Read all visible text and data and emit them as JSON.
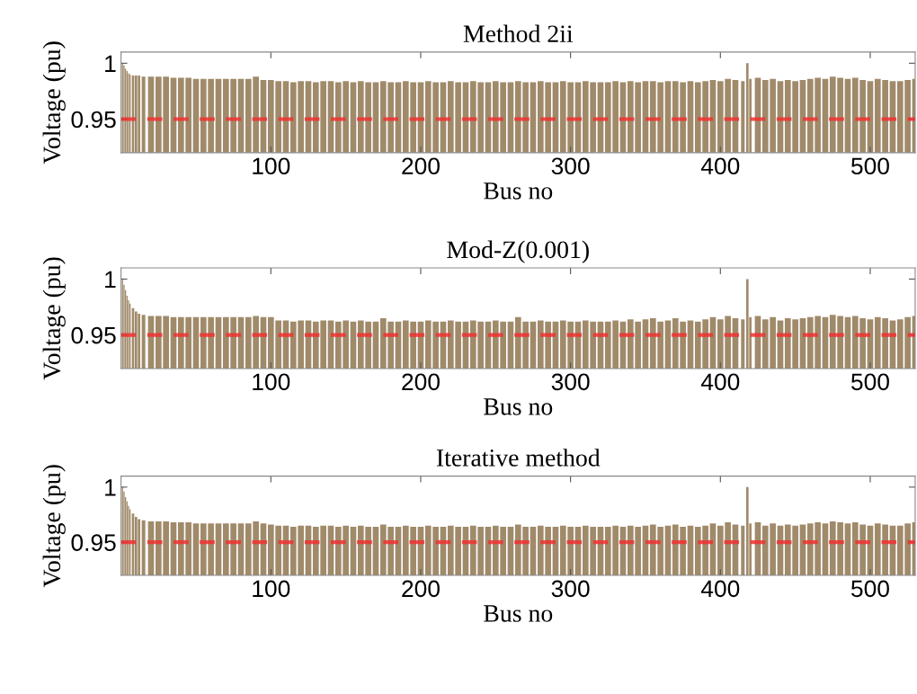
{
  "chart_data": [
    {
      "type": "bar",
      "title": "Method 2ii",
      "xlabel": "Bus no",
      "ylabel": "Voltage (pu)",
      "xlim": [
        0,
        530
      ],
      "xticks": [
        100,
        200,
        300,
        400,
        500
      ],
      "ylim": [
        0.92,
        1.01
      ],
      "yticks": [
        0.95,
        1
      ],
      "grid": false,
      "legend": false,
      "ref_lines": [
        {
          "axis": "y",
          "value": 0.95,
          "color": "#f03030",
          "line_style": "dashed"
        }
      ],
      "series": [
        {
          "color": "#a08a6a",
          "x": [
            1,
            2,
            3,
            4,
            5,
            6,
            8,
            10,
            12,
            15,
            20,
            25,
            30,
            35,
            40,
            45,
            50,
            55,
            60,
            65,
            70,
            75,
            80,
            85,
            90,
            95,
            100,
            105,
            110,
            115,
            120,
            125,
            130,
            135,
            140,
            145,
            150,
            155,
            160,
            165,
            170,
            175,
            180,
            185,
            190,
            195,
            200,
            205,
            210,
            215,
            220,
            225,
            230,
            235,
            240,
            245,
            250,
            255,
            260,
            265,
            270,
            275,
            280,
            285,
            290,
            295,
            300,
            305,
            310,
            315,
            320,
            325,
            330,
            335,
            340,
            345,
            350,
            355,
            360,
            365,
            370,
            375,
            380,
            385,
            390,
            395,
            400,
            405,
            410,
            415,
            418,
            420,
            425,
            430,
            435,
            440,
            445,
            450,
            455,
            460,
            465,
            470,
            475,
            480,
            485,
            490,
            495,
            500,
            505,
            510,
            515,
            520,
            525,
            530
          ],
          "values": [
            1.0,
            0.998,
            0.995,
            0.993,
            0.991,
            0.99,
            0.989,
            0.989,
            0.989,
            0.988,
            0.988,
            0.988,
            0.988,
            0.987,
            0.987,
            0.987,
            0.986,
            0.986,
            0.986,
            0.986,
            0.986,
            0.986,
            0.986,
            0.986,
            0.988,
            0.985,
            0.985,
            0.984,
            0.984,
            0.983,
            0.984,
            0.984,
            0.983,
            0.984,
            0.984,
            0.983,
            0.984,
            0.983,
            0.984,
            0.983,
            0.983,
            0.984,
            0.983,
            0.983,
            0.984,
            0.983,
            0.983,
            0.984,
            0.983,
            0.983,
            0.984,
            0.983,
            0.983,
            0.984,
            0.983,
            0.983,
            0.984,
            0.983,
            0.983,
            0.984,
            0.983,
            0.983,
            0.984,
            0.983,
            0.983,
            0.984,
            0.983,
            0.983,
            0.984,
            0.983,
            0.983,
            0.983,
            0.984,
            0.983,
            0.984,
            0.983,
            0.984,
            0.984,
            0.983,
            0.984,
            0.984,
            0.983,
            0.984,
            0.983,
            0.984,
            0.985,
            0.984,
            0.986,
            0.985,
            0.984,
            1.0,
            0.986,
            0.987,
            0.985,
            0.986,
            0.984,
            0.985,
            0.984,
            0.985,
            0.986,
            0.987,
            0.986,
            0.988,
            0.987,
            0.986,
            0.987,
            0.985,
            0.984,
            0.986,
            0.985,
            0.984,
            0.984,
            0.985,
            0.986
          ]
        }
      ]
    },
    {
      "type": "bar",
      "title": "Mod-Z(0.001)",
      "xlabel": "Bus no",
      "ylabel": "Voltage (pu)",
      "xlim": [
        0,
        530
      ],
      "xticks": [
        100,
        200,
        300,
        400,
        500
      ],
      "ylim": [
        0.92,
        1.01
      ],
      "yticks": [
        0.95,
        1
      ],
      "grid": false,
      "legend": false,
      "ref_lines": [
        {
          "axis": "y",
          "value": 0.95,
          "color": "#f03030",
          "line_style": "dashed"
        }
      ],
      "series": [
        {
          "color": "#a08a6a",
          "x": [
            1,
            2,
            3,
            4,
            5,
            6,
            8,
            10,
            12,
            15,
            20,
            25,
            30,
            35,
            40,
            45,
            50,
            55,
            60,
            65,
            70,
            75,
            80,
            85,
            90,
            95,
            100,
            105,
            110,
            115,
            120,
            125,
            130,
            135,
            140,
            145,
            150,
            155,
            160,
            165,
            170,
            175,
            180,
            185,
            190,
            195,
            200,
            205,
            210,
            215,
            220,
            225,
            230,
            235,
            240,
            245,
            250,
            255,
            260,
            265,
            270,
            275,
            280,
            285,
            290,
            295,
            300,
            305,
            310,
            315,
            320,
            325,
            330,
            335,
            340,
            345,
            350,
            355,
            360,
            365,
            370,
            375,
            380,
            385,
            390,
            395,
            400,
            405,
            410,
            415,
            418,
            420,
            425,
            430,
            435,
            440,
            445,
            450,
            455,
            460,
            465,
            470,
            475,
            480,
            485,
            490,
            495,
            500,
            505,
            510,
            515,
            520,
            525,
            530
          ],
          "values": [
            1.0,
            0.995,
            0.99,
            0.985,
            0.981,
            0.978,
            0.974,
            0.971,
            0.969,
            0.968,
            0.967,
            0.967,
            0.967,
            0.966,
            0.966,
            0.966,
            0.966,
            0.966,
            0.966,
            0.966,
            0.966,
            0.966,
            0.966,
            0.966,
            0.967,
            0.966,
            0.966,
            0.963,
            0.963,
            0.962,
            0.963,
            0.963,
            0.962,
            0.963,
            0.963,
            0.962,
            0.963,
            0.962,
            0.963,
            0.962,
            0.962,
            0.965,
            0.962,
            0.962,
            0.963,
            0.962,
            0.962,
            0.963,
            0.962,
            0.962,
            0.963,
            0.962,
            0.962,
            0.963,
            0.962,
            0.962,
            0.963,
            0.962,
            0.962,
            0.966,
            0.962,
            0.962,
            0.963,
            0.962,
            0.962,
            0.963,
            0.962,
            0.962,
            0.963,
            0.962,
            0.962,
            0.962,
            0.963,
            0.962,
            0.964,
            0.962,
            0.964,
            0.965,
            0.962,
            0.963,
            0.965,
            0.962,
            0.963,
            0.962,
            0.964,
            0.966,
            0.964,
            0.967,
            0.965,
            0.964,
            1.0,
            0.966,
            0.967,
            0.964,
            0.966,
            0.963,
            0.965,
            0.964,
            0.965,
            0.966,
            0.967,
            0.966,
            0.968,
            0.967,
            0.966,
            0.967,
            0.965,
            0.964,
            0.966,
            0.965,
            0.963,
            0.964,
            0.966,
            0.967
          ]
        }
      ]
    },
    {
      "type": "bar",
      "title": "Iterative method",
      "xlabel": "Bus no",
      "ylabel": "Voltage (pu)",
      "xlim": [
        0,
        530
      ],
      "xticks": [
        100,
        200,
        300,
        400,
        500
      ],
      "ylim": [
        0.92,
        1.01
      ],
      "yticks": [
        0.95,
        1
      ],
      "grid": false,
      "legend": false,
      "ref_lines": [
        {
          "axis": "y",
          "value": 0.95,
          "color": "#f03030",
          "line_style": "dashed"
        }
      ],
      "series": [
        {
          "color": "#a08a6a",
          "x": [
            1,
            2,
            3,
            4,
            5,
            6,
            8,
            10,
            12,
            15,
            20,
            25,
            30,
            35,
            40,
            45,
            50,
            55,
            60,
            65,
            70,
            75,
            80,
            85,
            90,
            95,
            100,
            105,
            110,
            115,
            120,
            125,
            130,
            135,
            140,
            145,
            150,
            155,
            160,
            165,
            170,
            175,
            180,
            185,
            190,
            195,
            200,
            205,
            210,
            215,
            220,
            225,
            230,
            235,
            240,
            245,
            250,
            255,
            260,
            265,
            270,
            275,
            280,
            285,
            290,
            295,
            300,
            305,
            310,
            315,
            320,
            325,
            330,
            335,
            340,
            345,
            350,
            355,
            360,
            365,
            370,
            375,
            380,
            385,
            390,
            395,
            400,
            405,
            410,
            415,
            418,
            420,
            425,
            430,
            435,
            440,
            445,
            450,
            455,
            460,
            465,
            470,
            475,
            480,
            485,
            490,
            495,
            500,
            505,
            510,
            515,
            520,
            525,
            530
          ],
          "values": [
            1.0,
            0.996,
            0.991,
            0.987,
            0.983,
            0.98,
            0.976,
            0.973,
            0.971,
            0.97,
            0.969,
            0.969,
            0.969,
            0.968,
            0.968,
            0.968,
            0.967,
            0.967,
            0.967,
            0.967,
            0.967,
            0.967,
            0.967,
            0.967,
            0.969,
            0.967,
            0.966,
            0.965,
            0.965,
            0.964,
            0.965,
            0.965,
            0.964,
            0.965,
            0.965,
            0.964,
            0.965,
            0.964,
            0.965,
            0.964,
            0.964,
            0.966,
            0.964,
            0.964,
            0.965,
            0.964,
            0.964,
            0.965,
            0.964,
            0.964,
            0.965,
            0.964,
            0.964,
            0.965,
            0.964,
            0.964,
            0.965,
            0.964,
            0.964,
            0.966,
            0.964,
            0.964,
            0.965,
            0.964,
            0.964,
            0.965,
            0.964,
            0.964,
            0.965,
            0.964,
            0.964,
            0.964,
            0.965,
            0.964,
            0.965,
            0.964,
            0.965,
            0.966,
            0.964,
            0.965,
            0.966,
            0.964,
            0.965,
            0.964,
            0.965,
            0.967,
            0.965,
            0.968,
            0.966,
            0.965,
            1.0,
            0.967,
            0.968,
            0.965,
            0.967,
            0.965,
            0.966,
            0.965,
            0.966,
            0.967,
            0.968,
            0.967,
            0.969,
            0.968,
            0.967,
            0.968,
            0.966,
            0.965,
            0.967,
            0.966,
            0.965,
            0.965,
            0.967,
            0.968
          ]
        }
      ]
    }
  ]
}
